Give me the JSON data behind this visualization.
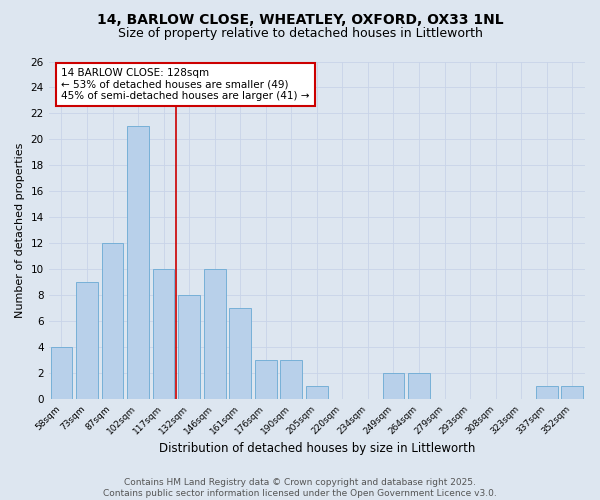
{
  "title_line1": "14, BARLOW CLOSE, WHEATLEY, OXFORD, OX33 1NL",
  "title_line2": "Size of property relative to detached houses in Littleworth",
  "xlabel": "Distribution of detached houses by size in Littleworth",
  "ylabel": "Number of detached properties",
  "bar_labels": [
    "58sqm",
    "73sqm",
    "87sqm",
    "102sqm",
    "117sqm",
    "132sqm",
    "146sqm",
    "161sqm",
    "176sqm",
    "190sqm",
    "205sqm",
    "220sqm",
    "234sqm",
    "249sqm",
    "264sqm",
    "279sqm",
    "293sqm",
    "308sqm",
    "323sqm",
    "337sqm",
    "352sqm"
  ],
  "bar_values": [
    4,
    9,
    12,
    21,
    10,
    8,
    10,
    7,
    3,
    3,
    1,
    0,
    0,
    2,
    2,
    0,
    0,
    0,
    0,
    1,
    1
  ],
  "bar_color": "#b8d0ea",
  "bar_edgecolor": "#6aaad4",
  "annotation_text_line1": "14 BARLOW CLOSE: 128sqm",
  "annotation_text_line2": "← 53% of detached houses are smaller (49)",
  "annotation_text_line3": "45% of semi-detached houses are larger (41) →",
  "annotation_box_color": "#ffffff",
  "annotation_box_edgecolor": "#cc0000",
  "vline_color": "#cc0000",
  "vline_x": 5,
  "ylim": [
    0,
    26
  ],
  "yticks": [
    0,
    2,
    4,
    6,
    8,
    10,
    12,
    14,
    16,
    18,
    20,
    22,
    24,
    26
  ],
  "grid_color": "#c8d4e8",
  "background_color": "#dde6f0",
  "footer_text": "Contains HM Land Registry data © Crown copyright and database right 2025.\nContains public sector information licensed under the Open Government Licence v3.0.",
  "title_fontsize": 10,
  "subtitle_fontsize": 9,
  "annotation_fontsize": 7.5,
  "footer_fontsize": 6.5,
  "ylabel_fontsize": 8,
  "xlabel_fontsize": 8.5
}
